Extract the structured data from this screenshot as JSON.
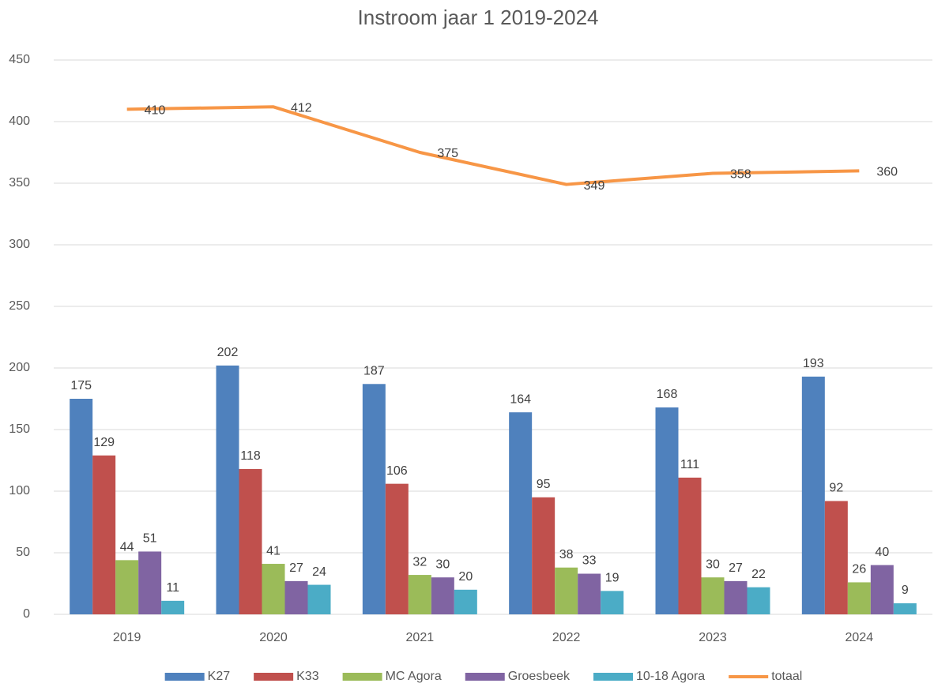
{
  "chart_data": {
    "type": "bar",
    "title": "Instroom jaar 1   2019-2024",
    "categories": [
      "2019",
      "2020",
      "2021",
      "2022",
      "2023",
      "2024"
    ],
    "series": [
      {
        "name": "K27",
        "color": "#4f81bd",
        "values": [
          175,
          202,
          187,
          164,
          168,
          193
        ]
      },
      {
        "name": "K33",
        "color": "#c0504d",
        "values": [
          129,
          118,
          106,
          95,
          111,
          92
        ]
      },
      {
        "name": "MC Agora",
        "color": "#9bbb59",
        "values": [
          44,
          41,
          32,
          38,
          30,
          26
        ]
      },
      {
        "name": "Groesbeek",
        "color": "#8064a2",
        "values": [
          51,
          27,
          30,
          33,
          27,
          40
        ]
      },
      {
        "name": "10-18 Agora",
        "color": "#4bacc6",
        "values": [
          11,
          24,
          20,
          19,
          22,
          9
        ]
      },
      {
        "name": "totaal",
        "color": "#f79646",
        "type": "line",
        "values": [
          410,
          412,
          375,
          349,
          358,
          360
        ]
      }
    ],
    "ylim": [
      0,
      450
    ],
    "yticks": [
      0,
      50,
      100,
      150,
      200,
      250,
      300,
      350,
      400,
      450
    ],
    "grid": true,
    "legend": "bottom"
  }
}
